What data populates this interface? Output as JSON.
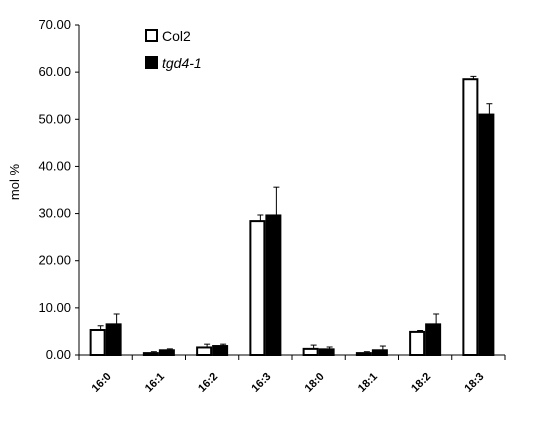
{
  "chart_data": {
    "type": "bar",
    "title": "",
    "xlabel": "",
    "ylabel": "mol %",
    "ylim": [
      0,
      70
    ],
    "yticks": [
      "0.00",
      "10.00",
      "20.00",
      "30.00",
      "40.00",
      "50.00",
      "60.00",
      "70.00"
    ],
    "categories": [
      "16:0",
      "16:1",
      "16:2",
      "16:3",
      "18:0",
      "18:1",
      "18:2",
      "18:3"
    ],
    "grid": false,
    "legend": "top-left",
    "series": [
      {
        "name": "Col2",
        "fill": "#ffffff",
        "values": [
          5.3,
          0.4,
          1.6,
          28.4,
          1.3,
          0.4,
          4.9,
          58.5
        ],
        "errors": [
          0.9,
          0.3,
          0.7,
          1.3,
          0.8,
          0.3,
          0.3,
          0.6
        ]
      },
      {
        "name": "tgd4-1",
        "fill": "#000000",
        "italic": true,
        "values": [
          6.5,
          1.0,
          1.9,
          29.6,
          1.2,
          1.0,
          6.5,
          51.0
        ],
        "errors": [
          2.2,
          0.3,
          0.4,
          6.0,
          0.5,
          0.9,
          2.2,
          2.3
        ]
      }
    ]
  }
}
